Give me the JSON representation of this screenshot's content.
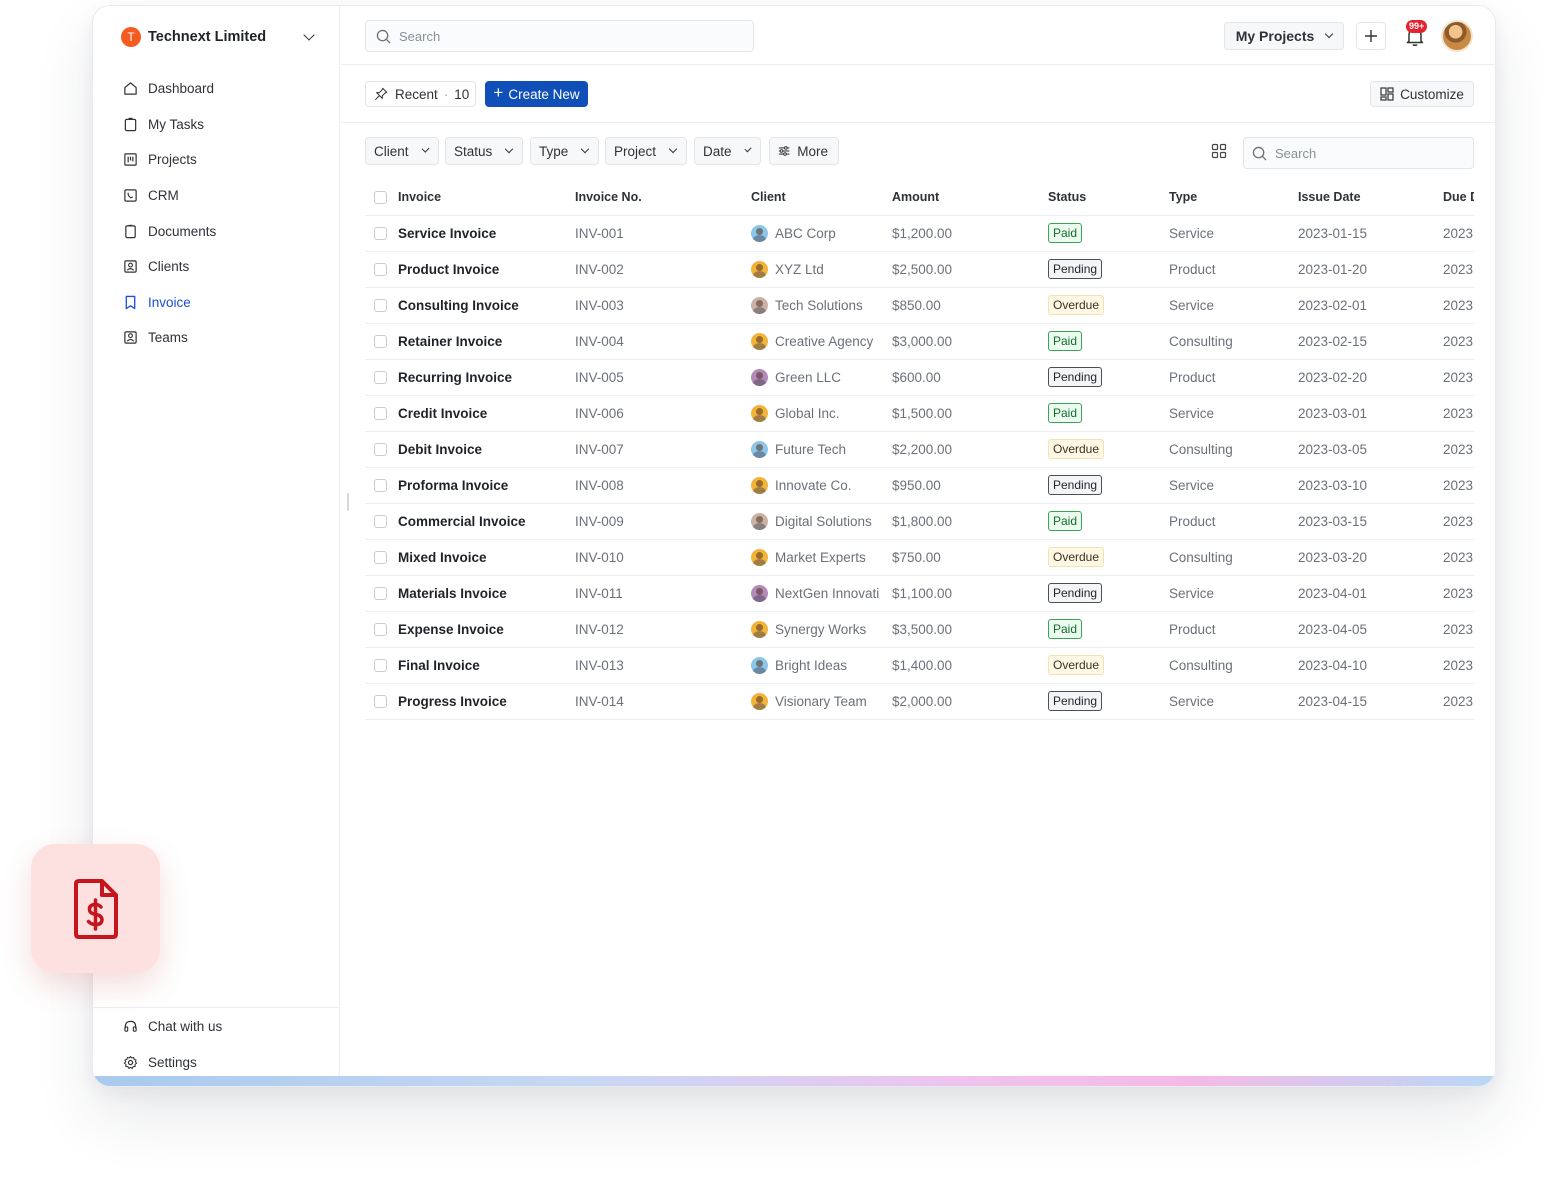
{
  "org": {
    "initial": "T",
    "name": "Technext Limited"
  },
  "nav": [
    {
      "label": "Dashboard",
      "icon": "home-icon"
    },
    {
      "label": "My Tasks",
      "icon": "clipboard-icon"
    },
    {
      "label": "Projects",
      "icon": "kanban-icon"
    },
    {
      "label": "CRM",
      "icon": "phone-icon"
    },
    {
      "label": "Documents",
      "icon": "document-icon"
    },
    {
      "label": "Clients",
      "icon": "contact-icon"
    },
    {
      "label": "Invoice",
      "icon": "bookmark-icon",
      "active": true
    },
    {
      "label": "Teams",
      "icon": "team-icon"
    }
  ],
  "bottom_nav": [
    {
      "label": "Chat with us",
      "icon": "headset-icon"
    },
    {
      "label": "Settings",
      "icon": "gear-icon"
    }
  ],
  "topbar": {
    "search_placeholder": "Search",
    "projects_label": "My Projects",
    "notification_badge": "99+"
  },
  "actions": {
    "recent_label": "Recent",
    "recent_count": "10",
    "create_label": "Create New",
    "customize_label": "Customize"
  },
  "filters": {
    "items": [
      "Client",
      "Status",
      "Type",
      "Project",
      "Date"
    ],
    "more_label": "More",
    "search_placeholder": "Search"
  },
  "table": {
    "columns": [
      "Invoice",
      "Invoice No.",
      "Client",
      "Amount",
      "Status",
      "Type",
      "Issue Date",
      "Due Date"
    ],
    "rows": [
      {
        "name": "Service Invoice",
        "no": "INV-001",
        "client": "ABC Corp",
        "amount": "$1,200.00",
        "status": "Paid",
        "type": "Service",
        "issue": "2023-01-15",
        "due": "2023"
      },
      {
        "name": "Product Invoice",
        "no": "INV-002",
        "client": "XYZ Ltd",
        "amount": "$2,500.00",
        "status": "Pending",
        "type": "Product",
        "issue": "2023-01-20",
        "due": "2023"
      },
      {
        "name": "Consulting Invoice",
        "no": "INV-003",
        "client": "Tech Solutions",
        "amount": "$850.00",
        "status": "Overdue",
        "type": "Service",
        "issue": "2023-02-01",
        "due": "2023"
      },
      {
        "name": "Retainer Invoice",
        "no": "INV-004",
        "client": "Creative Agency",
        "amount": "$3,000.00",
        "status": "Paid",
        "type": "Consulting",
        "issue": "2023-02-15",
        "due": "2023"
      },
      {
        "name": "Recurring Invoice",
        "no": "INV-005",
        "client": "Green LLC",
        "amount": "$600.00",
        "status": "Pending",
        "type": "Product",
        "issue": "2023-02-20",
        "due": "2023"
      },
      {
        "name": "Credit Invoice",
        "no": "INV-006",
        "client": "Global Inc.",
        "amount": "$1,500.00",
        "status": "Paid",
        "type": "Service",
        "issue": "2023-03-01",
        "due": "2023"
      },
      {
        "name": "Debit Invoice",
        "no": "INV-007",
        "client": "Future Tech",
        "amount": "$2,200.00",
        "status": "Overdue",
        "type": "Consulting",
        "issue": "2023-03-05",
        "due": "2023"
      },
      {
        "name": "Proforma Invoice",
        "no": "INV-008",
        "client": "Innovate Co.",
        "amount": "$950.00",
        "status": "Pending",
        "type": "Service",
        "issue": "2023-03-10",
        "due": "2023"
      },
      {
        "name": "Commercial Invoice",
        "no": "INV-009",
        "client": "Digital Solutions",
        "amount": "$1,800.00",
        "status": "Paid",
        "type": "Product",
        "issue": "2023-03-15",
        "due": "2023"
      },
      {
        "name": "Mixed Invoice",
        "no": "INV-010",
        "client": "Market Experts",
        "amount": "$750.00",
        "status": "Overdue",
        "type": "Consulting",
        "issue": "2023-03-20",
        "due": "2023"
      },
      {
        "name": "Materials Invoice",
        "no": "INV-011",
        "client": "NextGen Innovati",
        "amount": "$1,100.00",
        "status": "Pending",
        "type": "Service",
        "issue": "2023-04-01",
        "due": "2023"
      },
      {
        "name": "Expense Invoice",
        "no": "INV-012",
        "client": "Synergy Works",
        "amount": "$3,500.00",
        "status": "Paid",
        "type": "Product",
        "issue": "2023-04-05",
        "due": "2023"
      },
      {
        "name": "Final Invoice",
        "no": "INV-013",
        "client": "Bright Ideas",
        "amount": "$1,400.00",
        "status": "Overdue",
        "type": "Consulting",
        "issue": "2023-04-10",
        "due": "2023"
      },
      {
        "name": "Progress Invoice",
        "no": "INV-014",
        "client": "Visionary Team",
        "amount": "$2,000.00",
        "status": "Pending",
        "type": "Service",
        "issue": "2023-04-15",
        "due": "2023"
      }
    ]
  },
  "colors": {
    "accent": "#0f4fb7",
    "org_logo": "#f55b1f",
    "paid": "#3aa455",
    "overdue_bg": "#fdf7e4",
    "tile_bg": "#fde1e1",
    "tile_icon": "#c4161c",
    "avatar_colors": [
      "#8ec6e8",
      "#f2b33b",
      "#c9b3a6",
      "#f2b33b",
      "#b48ab8",
      "#f2b33b",
      "#8ec6e8",
      "#f2b33b",
      "#c9b3a6",
      "#f2b33b",
      "#b48ab8",
      "#f2b33b",
      "#8ec6e8",
      "#f2b33b"
    ]
  },
  "floating_tile_icon": "invoice-dollar-icon"
}
